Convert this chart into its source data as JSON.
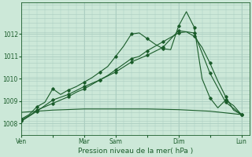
{
  "bg_color": "#cce8d8",
  "grid_color": "#aaccc0",
  "line_color": "#1a5c2a",
  "title": "Pression niveau de la mer( hPa )",
  "ylabel_ticks": [
    1008,
    1009,
    1010,
    1011,
    1012
  ],
  "ylim": [
    1007.5,
    1013.4
  ],
  "xtick_labels": [
    "Ven",
    "",
    "Mar",
    "Sam",
    "",
    "Dim",
    "",
    "Lun"
  ],
  "xtick_positions": [
    0,
    4,
    8,
    12,
    16,
    20,
    24,
    28
  ],
  "xlim": [
    0,
    29
  ],
  "vline_positions": [
    0,
    8,
    12,
    20,
    28
  ],
  "line1_x": [
    0,
    1,
    2,
    3,
    4,
    5,
    6,
    7,
    8,
    9,
    10,
    11,
    12,
    13,
    14,
    15,
    16,
    17,
    18,
    19,
    20,
    21,
    22,
    23,
    24,
    25,
    26,
    27,
    28
  ],
  "line1_y": [
    1008.15,
    1008.35,
    1008.6,
    1008.75,
    1008.9,
    1009.05,
    1009.2,
    1009.4,
    1009.55,
    1009.75,
    1009.95,
    1010.15,
    1010.4,
    1010.65,
    1010.9,
    1011.0,
    1011.25,
    1011.45,
    1011.65,
    1011.85,
    1012.05,
    1012.1,
    1011.9,
    1011.4,
    1010.7,
    1009.9,
    1009.2,
    1008.6,
    1008.4
  ],
  "line2_x": [
    0,
    1,
    2,
    3,
    4,
    5,
    6,
    7,
    8,
    9,
    10,
    11,
    12,
    13,
    14,
    15,
    16,
    17,
    18,
    19,
    20,
    21,
    22,
    23,
    24,
    25,
    26,
    27,
    28
  ],
  "line2_y": [
    1008.2,
    1008.4,
    1008.75,
    1008.95,
    1009.55,
    1009.3,
    1009.5,
    1009.65,
    1009.85,
    1010.05,
    1010.3,
    1010.55,
    1011.0,
    1011.45,
    1012.0,
    1012.05,
    1011.8,
    1011.55,
    1011.35,
    1011.3,
    1012.35,
    1013.0,
    1012.3,
    1010.0,
    1009.15,
    1008.7,
    1009.05,
    1008.8,
    1008.4
  ],
  "line3_x": [
    0,
    2,
    4,
    6,
    8,
    10,
    12,
    14,
    16,
    18,
    20,
    22,
    24,
    26,
    28
  ],
  "line3_y": [
    1008.1,
    1008.55,
    1009.05,
    1009.3,
    1009.65,
    1009.95,
    1010.3,
    1010.75,
    1011.05,
    1011.4,
    1012.15,
    1012.05,
    1010.25,
    1008.95,
    1008.4
  ],
  "flat_line_x": [
    0,
    4,
    8,
    12,
    16,
    20,
    24,
    28
  ],
  "flat_line_y": [
    1008.5,
    1008.6,
    1008.65,
    1008.65,
    1008.65,
    1008.62,
    1008.55,
    1008.4
  ],
  "figwidth": 3.2,
  "figheight": 2.0,
  "dpi": 100
}
